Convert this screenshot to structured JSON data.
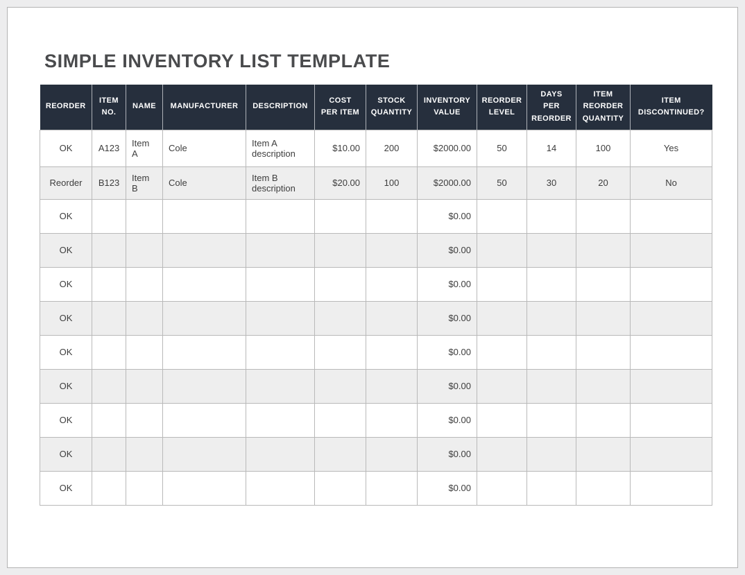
{
  "page": {
    "title": "SIMPLE INVENTORY LIST TEMPLATE"
  },
  "colors": {
    "canvas_bg": "#ededee",
    "page_bg": "#ffffff",
    "title_text": "#4a4b4d",
    "header_bg": "#262f3d",
    "header_text": "#ffffff",
    "row_alt_bg": "#eeeeee",
    "grid_line": "#b9b9b9",
    "body_text": "#3d3d3d"
  },
  "table": {
    "columns": [
      "REORDER",
      "ITEM\nNO.",
      "NAME",
      "MANUFACTURER",
      "DESCRIPTION",
      "COST\nPER ITEM",
      "STOCK\nQUANTITY",
      "INVENTORY\nVALUE",
      "REORDER\nLEVEL",
      "DAYS\nPER\nREORDER",
      "ITEM\nREORDER\nQUANTITY",
      "ITEM\nDISCONTINUED?"
    ],
    "rows": [
      [
        "OK",
        "A123",
        "Item A",
        "Cole",
        "Item A description",
        "$10.00",
        "200",
        "$2000.00",
        "50",
        "14",
        "100",
        "Yes"
      ],
      [
        "Reorder",
        "B123",
        "Item B",
        "Cole",
        "Item B description",
        "$20.00",
        "100",
        "$2000.00",
        "50",
        "30",
        "20",
        "No"
      ],
      [
        "OK",
        "",
        "",
        "",
        "",
        "",
        "",
        "$0.00",
        "",
        "",
        "",
        ""
      ],
      [
        "OK",
        "",
        "",
        "",
        "",
        "",
        "",
        "$0.00",
        "",
        "",
        "",
        ""
      ],
      [
        "OK",
        "",
        "",
        "",
        "",
        "",
        "",
        "$0.00",
        "",
        "",
        "",
        ""
      ],
      [
        "OK",
        "",
        "",
        "",
        "",
        "",
        "",
        "$0.00",
        "",
        "",
        "",
        ""
      ],
      [
        "OK",
        "",
        "",
        "",
        "",
        "",
        "",
        "$0.00",
        "",
        "",
        "",
        ""
      ],
      [
        "OK",
        "",
        "",
        "",
        "",
        "",
        "",
        "$0.00",
        "",
        "",
        "",
        ""
      ],
      [
        "OK",
        "",
        "",
        "",
        "",
        "",
        "",
        "$0.00",
        "",
        "",
        "",
        ""
      ],
      [
        "OK",
        "",
        "",
        "",
        "",
        "",
        "",
        "$0.00",
        "",
        "",
        "",
        ""
      ],
      [
        "OK",
        "",
        "",
        "",
        "",
        "",
        "",
        "$0.00",
        "",
        "",
        "",
        ""
      ]
    ]
  }
}
